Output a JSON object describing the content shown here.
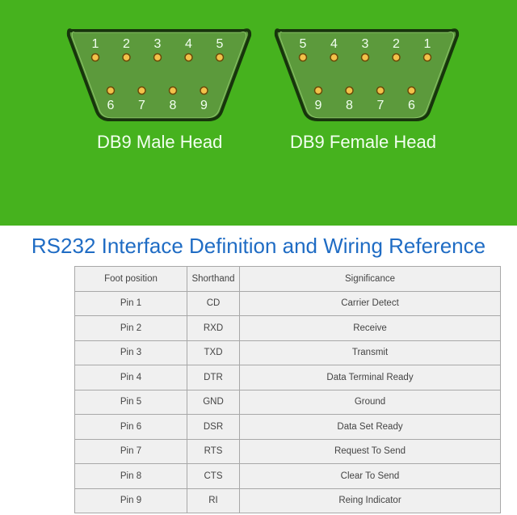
{
  "colors": {
    "banner": "#46b21e",
    "connector": "#5c9a3c",
    "pin": "#f3c24a",
    "title": "#1f6cc4"
  },
  "connectors": {
    "male": {
      "label": "DB9 Male Head",
      "top_pins": [
        "1",
        "2",
        "3",
        "4",
        "5"
      ],
      "bottom_pins": [
        "6",
        "7",
        "8",
        "9"
      ]
    },
    "female": {
      "label": "DB9 Female Head",
      "top_pins": [
        "5",
        "4",
        "3",
        "2",
        "1"
      ],
      "bottom_pins": [
        "9",
        "8",
        "7",
        "6"
      ]
    }
  },
  "title": "RS232 Interface Definition and Wiring Reference",
  "table": {
    "headers": [
      "Foot position",
      "Shorthand",
      "Significance"
    ],
    "rows": [
      [
        "Pin 1",
        "CD",
        "Carrier Detect"
      ],
      [
        "Pin 2",
        "RXD",
        "Receive"
      ],
      [
        "Pin 3",
        "TXD",
        "Transmit"
      ],
      [
        "Pin 4",
        "DTR",
        "Data Terminal Ready"
      ],
      [
        "Pin 5",
        "GND",
        "Ground"
      ],
      [
        "Pin 6",
        "DSR",
        "Data Set Ready"
      ],
      [
        "Pin 7",
        "RTS",
        "Request To Send"
      ],
      [
        "Pin 8",
        "CTS",
        "Clear To Send"
      ],
      [
        "Pin 9",
        "RI",
        "Reing Indicator"
      ]
    ]
  }
}
